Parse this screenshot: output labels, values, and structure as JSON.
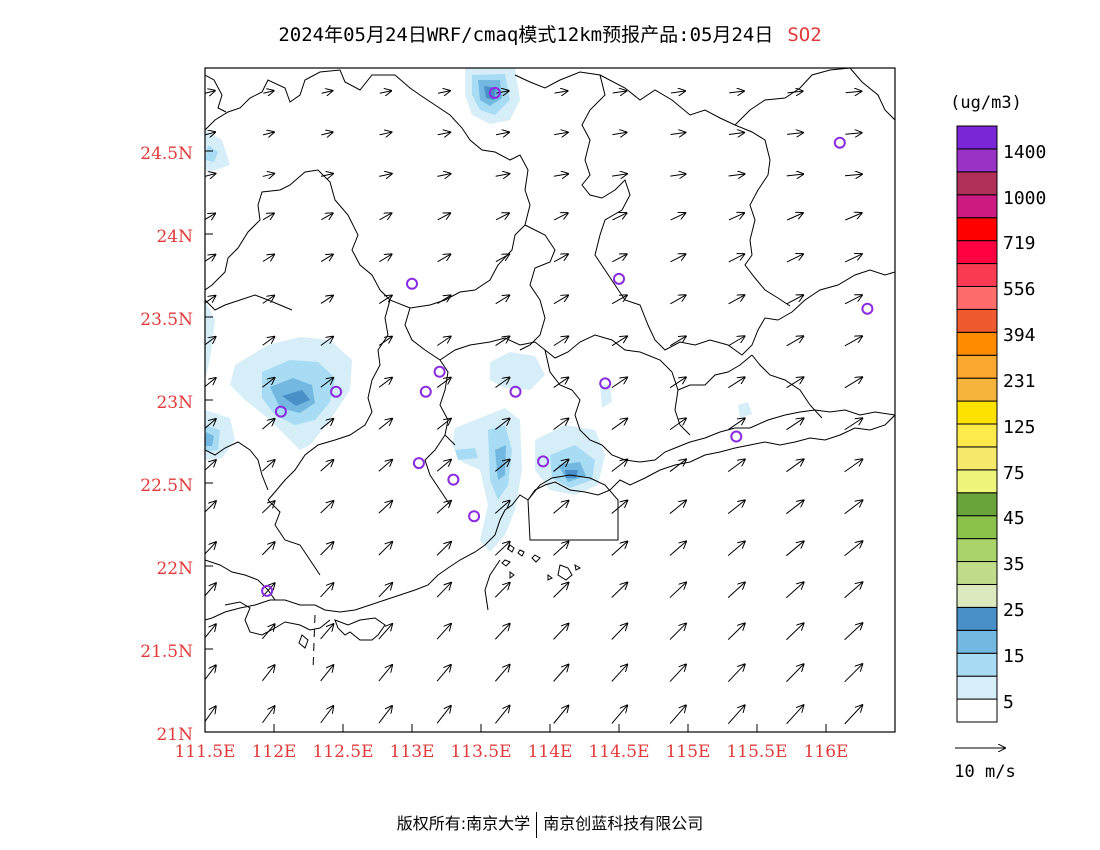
{
  "title": {
    "main": "2024年05月24日WRF/cmaq模式12km预报产品:05月24日",
    "product": "SO2"
  },
  "map": {
    "lon_ticks": [
      "111.5E",
      "112E",
      "112.5E",
      "113E",
      "113.5E",
      "114E",
      "114.5E",
      "115E",
      "115.5E",
      "116E"
    ],
    "lat_ticks": [
      "24.5N",
      "24N",
      "23.5N",
      "23N",
      "22.5N",
      "22N",
      "21.5N",
      "21N"
    ],
    "tick_color": "#e23a3a",
    "stations": [
      {
        "lon": 113.6,
        "lat": 24.85
      },
      {
        "lon": 116.1,
        "lat": 24.55
      },
      {
        "lon": 113.0,
        "lat": 23.7
      },
      {
        "lon": 114.5,
        "lat": 23.73
      },
      {
        "lon": 116.3,
        "lat": 23.55
      },
      {
        "lon": 113.2,
        "lat": 23.17
      },
      {
        "lon": 113.1,
        "lat": 23.05
      },
      {
        "lon": 113.75,
        "lat": 23.05
      },
      {
        "lon": 114.4,
        "lat": 23.1
      },
      {
        "lon": 112.45,
        "lat": 23.05
      },
      {
        "lon": 112.05,
        "lat": 22.93
      },
      {
        "lon": 113.05,
        "lat": 22.62
      },
      {
        "lon": 113.3,
        "lat": 22.52
      },
      {
        "lon": 113.95,
        "lat": 22.63
      },
      {
        "lon": 115.35,
        "lat": 22.78
      },
      {
        "lon": 113.45,
        "lat": 22.3
      },
      {
        "lon": 111.95,
        "lat": 21.85
      }
    ]
  },
  "legend": {
    "unit": "(ug/m3)",
    "colors": [
      "#ffffff",
      "#d6eef8",
      "#a8dcf4",
      "#73b8e0",
      "#4a90c8",
      "#dce9bf",
      "#c0dc8b",
      "#a9d46a",
      "#8ac24a",
      "#6aa33a",
      "#eef57a",
      "#f6e86a",
      "#fce94a",
      "#fde200",
      "#f6b43a",
      "#fba830",
      "#ff8c00",
      "#ef5b2e",
      "#ff6c6c",
      "#f83a52",
      "#ff0040",
      "#ff0000",
      "#cc1a80",
      "#b0305a",
      "#9b32c8",
      "#7b26d6"
    ],
    "labels": [
      "5",
      "15",
      "25",
      "35",
      "45",
      "75",
      "125",
      "231",
      "394",
      "556",
      "719",
      "1000",
      "1400"
    ]
  },
  "wind_scale": {
    "label": "10 m/s"
  },
  "footer": {
    "left": "版权所有:南京大学",
    "right": "南京创蓝科技有限公司"
  }
}
